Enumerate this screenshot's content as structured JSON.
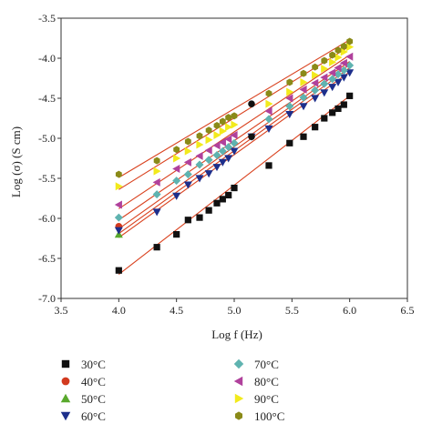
{
  "chart_data": {
    "type": "scatter",
    "xlabel": "Log f (Hz)",
    "ylabel": "Log (σ) (S cm)",
    "xlim": [
      3.5,
      6.5
    ],
    "ylim": [
      -7.0,
      -3.5
    ],
    "xticks": [
      "3.5",
      "4.0",
      "4.5",
      "5.0",
      "5.5",
      "6.0",
      "6.5"
    ],
    "yticks": [
      "-3.5",
      "-4.0",
      "-4.5",
      "-5.0",
      "-5.5",
      "-6.0",
      "-6.5",
      "-7.0"
    ],
    "fit_line_color": "#d9411e",
    "legend_position": "bottom",
    "series": [
      {
        "name": "30°C",
        "color": "#111111",
        "marker": "square",
        "x": [
          4.0,
          4.33,
          4.5,
          4.6,
          4.7,
          4.78,
          4.85,
          4.9,
          4.95,
          5.0,
          5.3,
          5.48,
          5.6,
          5.7,
          5.78,
          5.85,
          5.9,
          5.95,
          6.0
        ],
        "y": [
          -6.65,
          -6.36,
          -6.2,
          -6.02,
          -5.99,
          -5.9,
          -5.81,
          -5.76,
          -5.71,
          -5.62,
          -5.34,
          -5.06,
          -4.98,
          -4.86,
          -4.75,
          -4.68,
          -4.63,
          -4.58,
          -4.47
        ]
      },
      {
        "name": "40°C",
        "color": "#d23a1f",
        "marker": "circle",
        "x": [
          4.0
        ],
        "y": [
          -6.1
        ]
      },
      {
        "name": "50°C",
        "color": "#59a92d",
        "marker": "triangle-up",
        "x": [
          4.0
        ],
        "y": [
          -6.2
        ]
      },
      {
        "name": "60°C",
        "color": "#1d2f8c",
        "marker": "triangle-down",
        "x": [
          4.0,
          4.33,
          4.5,
          4.6,
          4.7,
          4.78,
          4.85,
          4.9,
          4.95,
          5.0,
          5.15,
          5.3,
          5.48,
          5.6,
          5.7,
          5.78,
          5.85,
          5.9,
          5.95,
          6.0
        ],
        "y": [
          -6.15,
          -5.92,
          -5.72,
          -5.58,
          -5.5,
          -5.44,
          -5.36,
          -5.3,
          -5.25,
          -5.16,
          -4.98,
          -4.88,
          -4.7,
          -4.6,
          -4.5,
          -4.43,
          -4.36,
          -4.3,
          -4.24,
          -4.18
        ]
      },
      {
        "name": "70°C",
        "color": "#5fb3b0",
        "marker": "diamond",
        "x": [
          4.0,
          4.33,
          4.5,
          4.6,
          4.7,
          4.78,
          4.85,
          4.9,
          4.95,
          5.0,
          5.3,
          5.48,
          5.6,
          5.7,
          5.78,
          5.85,
          5.9,
          5.95,
          6.0
        ],
        "y": [
          -5.99,
          -5.7,
          -5.53,
          -5.45,
          -5.33,
          -5.27,
          -5.21,
          -5.16,
          -5.11,
          -5.06,
          -4.76,
          -4.6,
          -4.49,
          -4.4,
          -4.32,
          -4.26,
          -4.2,
          -4.15,
          -4.09
        ]
      },
      {
        "name": "80°C",
        "color": "#b0419c",
        "marker": "triangle-left",
        "x": [
          4.0,
          4.33,
          4.5,
          4.6,
          4.7,
          4.78,
          4.85,
          4.9,
          4.95,
          5.0,
          5.3,
          5.48,
          5.6,
          5.7,
          5.78,
          5.85,
          5.9,
          5.95,
          6.0
        ],
        "y": [
          -5.83,
          -5.55,
          -5.38,
          -5.3,
          -5.22,
          -5.15,
          -5.09,
          -5.05,
          -5.01,
          -4.96,
          -4.66,
          -4.5,
          -4.39,
          -4.31,
          -4.24,
          -4.18,
          -4.12,
          -4.06,
          -3.98
        ]
      },
      {
        "name": "90°C",
        "color": "#f2ea1c",
        "marker": "triangle-right",
        "x": [
          4.0,
          4.33,
          4.5,
          4.6,
          4.7,
          4.78,
          4.85,
          4.9,
          4.95,
          5.0,
          5.3,
          5.48,
          5.6,
          5.7,
          5.78,
          5.85,
          5.9,
          5.95,
          6.0
        ],
        "y": [
          -5.6,
          -5.41,
          -5.25,
          -5.16,
          -5.08,
          -5.02,
          -4.96,
          -4.91,
          -4.86,
          -4.83,
          -4.57,
          -4.42,
          -4.3,
          -4.21,
          -4.13,
          -4.05,
          -3.99,
          -3.92,
          -3.86
        ]
      },
      {
        "name": "100°C",
        "color": "#8a8a18",
        "marker": "hexagon",
        "x": [
          4.0,
          4.33,
          4.5,
          4.6,
          4.7,
          4.78,
          4.85,
          4.9,
          4.95,
          5.0,
          5.3,
          5.48,
          5.6,
          5.7,
          5.78,
          5.85,
          5.9,
          5.95,
          6.0
        ],
        "y": [
          -5.45,
          -5.28,
          -5.14,
          -5.04,
          -4.97,
          -4.9,
          -4.84,
          -4.79,
          -4.74,
          -4.72,
          -4.44,
          -4.3,
          -4.19,
          -4.11,
          -4.03,
          -3.96,
          -3.9,
          -3.85,
          -3.79
        ]
      }
    ],
    "extra_points": [
      {
        "series": "40°C",
        "x": 5.15,
        "y": -4.57
      },
      {
        "series": "40°C",
        "x": 5.15,
        "y": -4.98
      }
    ],
    "fits": [
      {
        "series": "30°C",
        "x": [
          4.0,
          6.0
        ],
        "y": [
          -6.7,
          -4.47
        ]
      },
      {
        "series": "40°C",
        "x": [
          4.0,
          6.0
        ],
        "y": [
          -6.24,
          -4.17
        ]
      },
      {
        "series": "50°C",
        "x": [
          4.0,
          6.0
        ],
        "y": [
          -6.19,
          -4.12
        ]
      },
      {
        "series": "60°C",
        "x": [
          4.0,
          6.0
        ],
        "y": [
          -6.13,
          -4.08
        ]
      },
      {
        "series": "70°C",
        "x": [
          4.0,
          6.0
        ],
        "y": [
          -6.02,
          -4.04
        ]
      },
      {
        "series": "80°C",
        "x": [
          4.0,
          6.0
        ],
        "y": [
          -5.88,
          -3.96
        ]
      },
      {
        "series": "90°C",
        "x": [
          4.0,
          6.0
        ],
        "y": [
          -5.64,
          -3.85
        ]
      },
      {
        "series": "100°C",
        "x": [
          4.0,
          6.0
        ],
        "y": [
          -5.49,
          -3.77
        ]
      }
    ]
  }
}
